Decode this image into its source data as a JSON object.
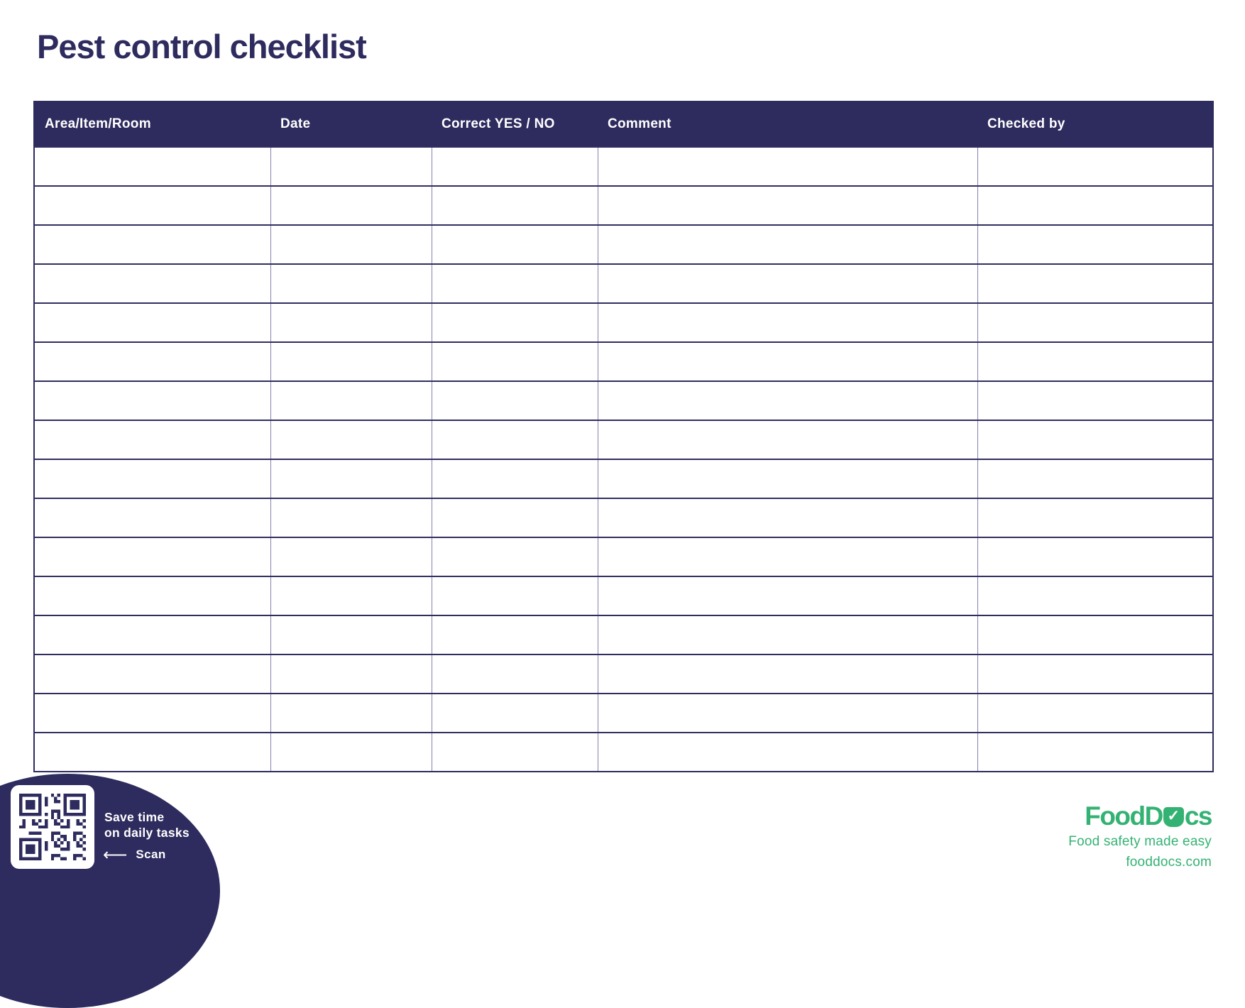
{
  "title": "Pest control checklist",
  "table": {
    "columns": [
      {
        "key": "area-item-room",
        "label": "Area/Item/Room"
      },
      {
        "key": "date",
        "label": "Date"
      },
      {
        "key": "correct-yes-no",
        "label": "Correct YES / NO"
      },
      {
        "key": "comment",
        "label": "Comment"
      },
      {
        "key": "checked-by",
        "label": "Checked by"
      }
    ],
    "rows": [
      [
        "",
        "",
        "",
        "",
        ""
      ],
      [
        "",
        "",
        "",
        "",
        ""
      ],
      [
        "",
        "",
        "",
        "",
        ""
      ],
      [
        "",
        "",
        "",
        "",
        ""
      ],
      [
        "",
        "",
        "",
        "",
        ""
      ],
      [
        "",
        "",
        "",
        "",
        ""
      ],
      [
        "",
        "",
        "",
        "",
        ""
      ],
      [
        "",
        "",
        "",
        "",
        ""
      ],
      [
        "",
        "",
        "",
        "",
        ""
      ],
      [
        "",
        "",
        "",
        "",
        ""
      ],
      [
        "",
        "",
        "",
        "",
        ""
      ],
      [
        "",
        "",
        "",
        "",
        ""
      ],
      [
        "",
        "",
        "",
        "",
        ""
      ],
      [
        "",
        "",
        "",
        "",
        ""
      ],
      [
        "",
        "",
        "",
        "",
        ""
      ],
      [
        "",
        "",
        "",
        "",
        ""
      ]
    ]
  },
  "promo": {
    "line1": "Save time",
    "line2": "on daily tasks",
    "arrow": "⟵",
    "scan_label": "Scan"
  },
  "brand": {
    "name": "FoodDocs",
    "logo_prefix": "FoodD",
    "logo_suffix": "cs",
    "check": "✓",
    "tagline": "Food safety made easy",
    "website": "fooddocs.com"
  },
  "icons": {
    "qr_code": "qr-code",
    "left_arrow": "left-arrow-icon",
    "brand_check": "check-icon"
  },
  "colors": {
    "navy": "#2e2b5e",
    "green": "#34b273",
    "grid_vertical": "#8583ad",
    "grid_horizontal": "#312e5f",
    "header_text": "#ffffff",
    "background": "#ffffff"
  }
}
